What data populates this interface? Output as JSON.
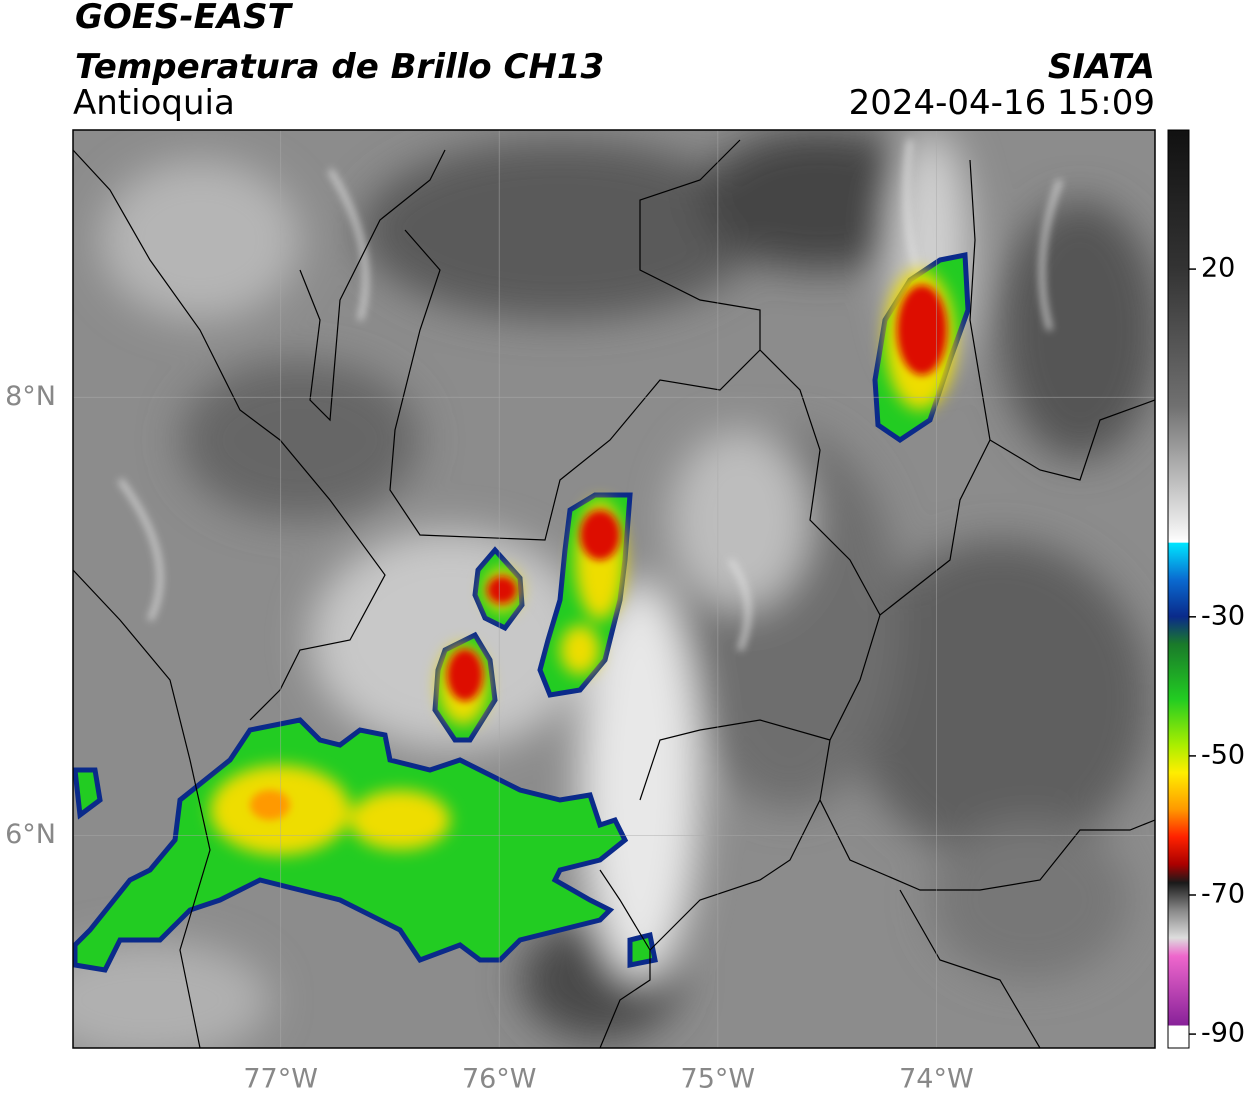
{
  "header": {
    "title": "GOES-EAST",
    "subtitle": "Temperatura de Brillo CH13",
    "region": "Antioquia",
    "source": "SIATA",
    "datetime": "2024-04-16 15:09"
  },
  "chart_data": {
    "type": "map",
    "xlim": [
      -77.95,
      -73
    ],
    "ylim": [
      5.03,
      9.22
    ],
    "xticks": [
      {
        "value": -77,
        "label": "77°W"
      },
      {
        "value": -76,
        "label": "76°W"
      },
      {
        "value": -75,
        "label": "75°W"
      },
      {
        "value": -74,
        "label": "74°W"
      }
    ],
    "yticks": [
      {
        "value": 6,
        "label": "6°N"
      },
      {
        "value": 8,
        "label": "8°N"
      }
    ],
    "grid": true,
    "colorbar": {
      "lim": [
        -92,
        40
      ],
      "ticks": [
        20,
        -30,
        -50,
        -70,
        -90
      ]
    }
  }
}
